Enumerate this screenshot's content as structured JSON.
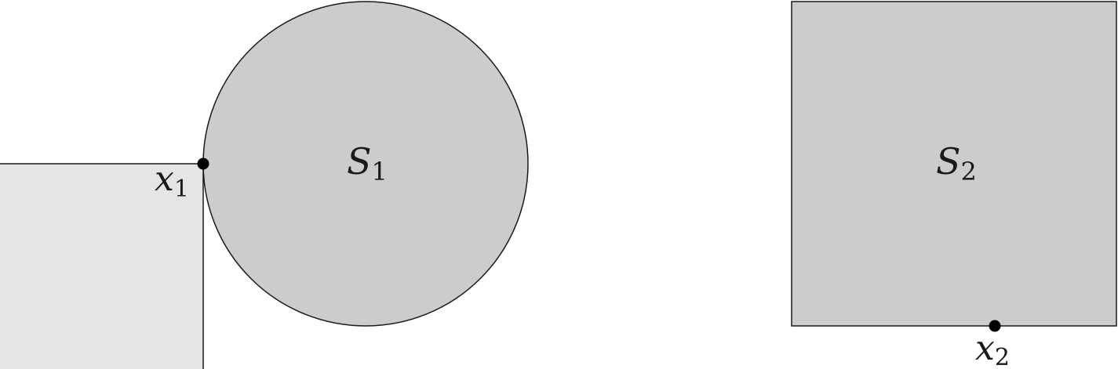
{
  "figure": {
    "left_panel": {
      "shape_label": {
        "main": "S",
        "sub": "1"
      },
      "point_label": {
        "main": "x",
        "sub": "1"
      }
    },
    "right_panel": {
      "shape_label": {
        "main": "S",
        "sub": "2"
      },
      "point_label": {
        "main": "x",
        "sub": "2"
      }
    },
    "colors": {
      "shape_fill": "#cccccc",
      "quadrant_fill": "#e5e5e5",
      "stroke": "#1a1a1a",
      "point": "#000000"
    }
  }
}
